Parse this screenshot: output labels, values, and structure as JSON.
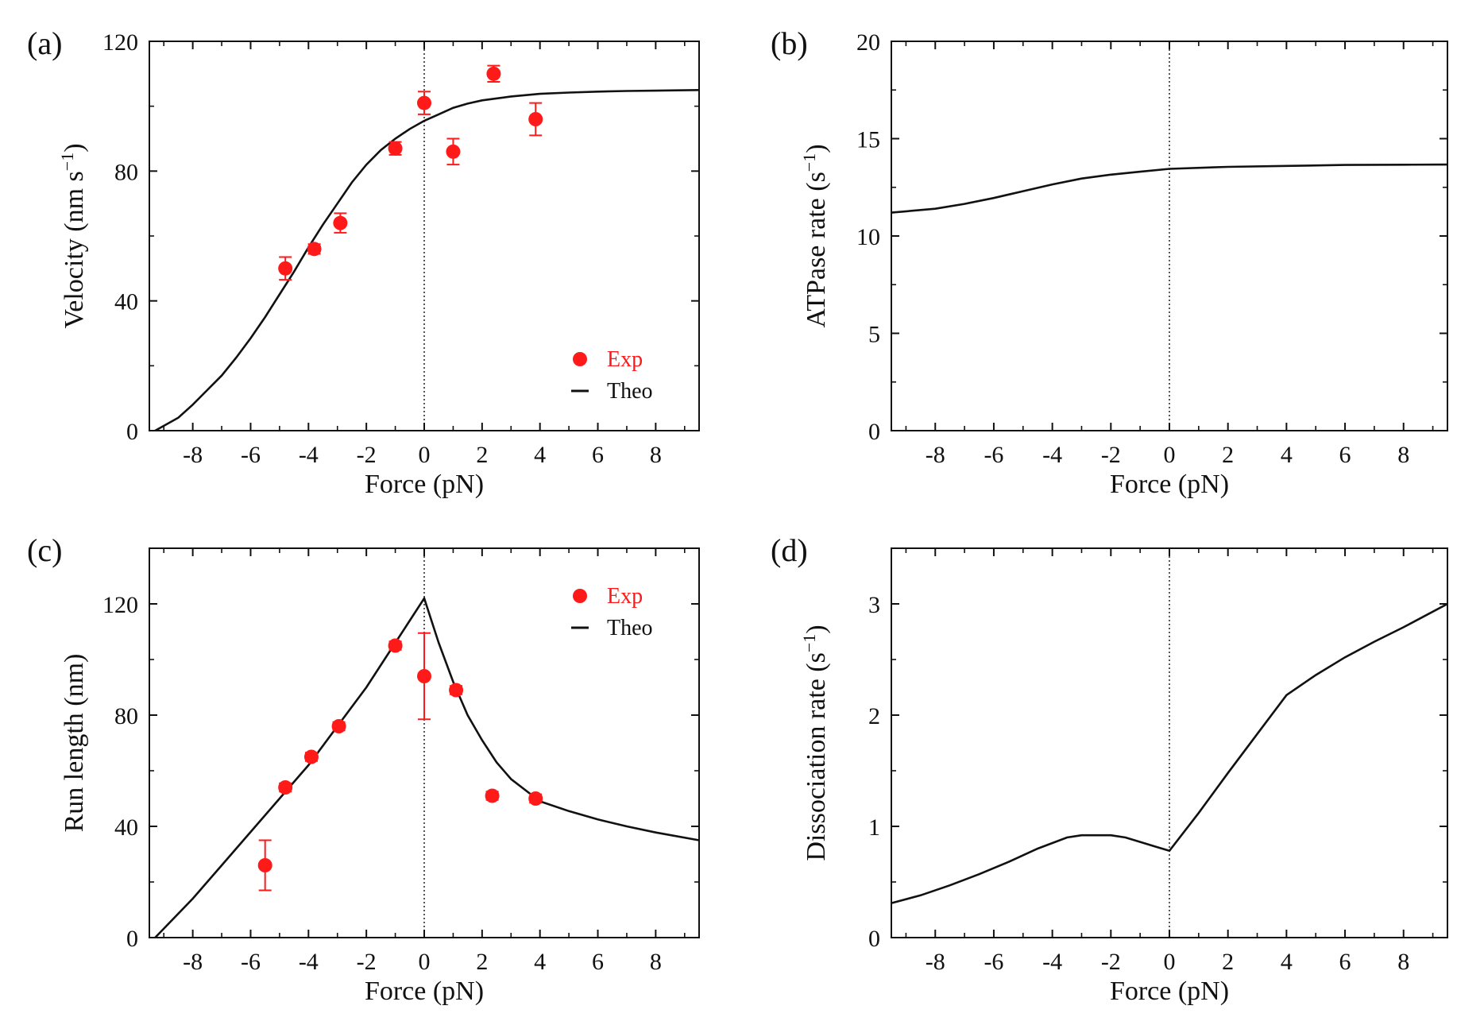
{
  "colors": {
    "experiment": "#ff1a1a",
    "theory": "#111111",
    "axis": "#111111",
    "zero_line": "#111111"
  },
  "chart_data": [
    {
      "panel": "(a)",
      "type": "line",
      "xlabel": "Force (pN)",
      "ylabel": "Velocity (nm s",
      "ylabel_sup": "−1",
      "ylabel_close": ")",
      "xlim": [
        -9.5,
        9.5
      ],
      "ylim": [
        0,
        120
      ],
      "xticks": [
        -8,
        -6,
        -4,
        -2,
        0,
        2,
        4,
        6,
        8
      ],
      "yticks": [
        0,
        40,
        80,
        120
      ],
      "vline": 0,
      "legend": {
        "position": "bottom-right",
        "items": [
          {
            "label": "Exp",
            "kind": "marker"
          },
          {
            "label": "Theo",
            "kind": "line"
          }
        ]
      },
      "series": [
        {
          "kind": "line",
          "x": [
            -9.3,
            -8.5,
            -8,
            -7.5,
            -7,
            -6.5,
            -6,
            -5.5,
            -5,
            -4.5,
            -4,
            -3.5,
            -3,
            -2.5,
            -2,
            -1.5,
            -1,
            -0.5,
            0,
            0.5,
            1,
            1.5,
            2,
            3,
            4,
            5,
            6,
            7,
            8,
            9.5
          ],
          "y": [
            0,
            4,
            8,
            12.5,
            17,
            22.5,
            28.5,
            35,
            42,
            49,
            56.5,
            63.5,
            70,
            76.5,
            82,
            86.5,
            90,
            93,
            95.5,
            97.5,
            99.5,
            100.8,
            101.8,
            103,
            103.8,
            104.2,
            104.5,
            104.7,
            104.8,
            105
          ]
        },
        {
          "kind": "scatter",
          "x": [
            -4.8,
            -3.8,
            -2.9,
            -1,
            0,
            1,
            2.4,
            3.85
          ],
          "y": [
            50,
            56,
            64,
            87,
            101,
            86,
            110,
            96
          ],
          "err": [
            3.5,
            1.5,
            3,
            2,
            3.5,
            4,
            2.5,
            5
          ]
        }
      ]
    },
    {
      "panel": "(b)",
      "type": "line",
      "xlabel": "Force (pN)",
      "ylabel": "ATPase rate (s",
      "ylabel_sup": "−1",
      "ylabel_close": ")",
      "xlim": [
        -9.5,
        9.5
      ],
      "ylim": [
        0,
        20
      ],
      "xticks": [
        -8,
        -6,
        -4,
        -2,
        0,
        2,
        4,
        6,
        8
      ],
      "yticks": [
        0,
        5,
        10,
        15,
        20
      ],
      "vline": 0,
      "series": [
        {
          "kind": "line",
          "x": [
            -9.5,
            -8,
            -7,
            -6,
            -5,
            -4,
            -3,
            -2,
            -1,
            0,
            2,
            4,
            6,
            8,
            9.5
          ],
          "y": [
            11.2,
            11.4,
            11.65,
            11.95,
            12.3,
            12.65,
            12.95,
            13.15,
            13.3,
            13.45,
            13.55,
            13.6,
            13.65,
            13.66,
            13.67
          ]
        }
      ]
    },
    {
      "panel": "(c)",
      "type": "line",
      "xlabel": "Force (pN)",
      "ylabel": "Run length (nm)",
      "xlim": [
        -9.5,
        9.5
      ],
      "ylim": [
        0,
        140
      ],
      "xticks": [
        -8,
        -6,
        -4,
        -2,
        0,
        2,
        4,
        6,
        8
      ],
      "yticks": [
        0,
        40,
        80,
        120
      ],
      "vline": 0,
      "legend": {
        "position": "top-right",
        "items": [
          {
            "label": "Exp",
            "kind": "marker"
          },
          {
            "label": "Theo",
            "kind": "line"
          }
        ]
      },
      "series": [
        {
          "kind": "line",
          "x": [
            -9.3,
            -8,
            -7,
            -6,
            -5,
            -4,
            -3,
            -2,
            -1,
            -0.5,
            0,
            0.5,
            1,
            1.5,
            2,
            2.5,
            3,
            4,
            5,
            6,
            7,
            8,
            9.5
          ],
          "y": [
            0,
            14,
            26,
            38,
            50,
            62,
            76,
            90,
            106,
            114,
            122,
            106,
            92,
            80,
            71,
            63,
            57,
            49,
            45.5,
            42.5,
            40,
            37.8,
            35
          ]
        },
        {
          "kind": "scatter",
          "x": [
            -5.5,
            -4.8,
            -3.9,
            -2.95,
            -1,
            0,
            1.1,
            2.35,
            3.85
          ],
          "y": [
            26,
            54,
            65,
            76,
            105,
            94,
            89,
            51,
            50
          ],
          "err": [
            9,
            1.5,
            1.5,
            1.5,
            1.5,
            15.5,
            1.5,
            1.5,
            1.5
          ]
        }
      ]
    },
    {
      "panel": "(d)",
      "type": "line",
      "xlabel": "Force (pN)",
      "ylabel": "Dissociation rate (s",
      "ylabel_sup": "−1",
      "ylabel_close": ")",
      "xlim": [
        -9.5,
        9.5
      ],
      "ylim": [
        0,
        3.5
      ],
      "xticks": [
        -8,
        -6,
        -4,
        -2,
        0,
        2,
        4,
        6,
        8
      ],
      "yticks": [
        0,
        1,
        2,
        3
      ],
      "vline": 0,
      "series": [
        {
          "kind": "line",
          "x": [
            -9.5,
            -8.5,
            -7.5,
            -6.5,
            -5.5,
            -4.5,
            -3.5,
            -3,
            -2.5,
            -2,
            -1.5,
            -1,
            -0.5,
            0,
            1,
            2,
            3,
            4,
            5,
            6,
            7,
            8,
            9.5
          ],
          "y": [
            0.31,
            0.38,
            0.47,
            0.57,
            0.68,
            0.8,
            0.9,
            0.92,
            0.92,
            0.92,
            0.9,
            0.86,
            0.82,
            0.78,
            1.12,
            1.48,
            1.83,
            2.18,
            2.36,
            2.52,
            2.66,
            2.79,
            3.0
          ]
        }
      ]
    }
  ]
}
